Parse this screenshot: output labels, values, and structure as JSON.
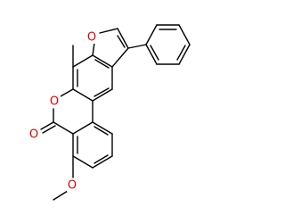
{
  "atoms": [
    "O",
    "O",
    "O",
    "O"
  ]
}
